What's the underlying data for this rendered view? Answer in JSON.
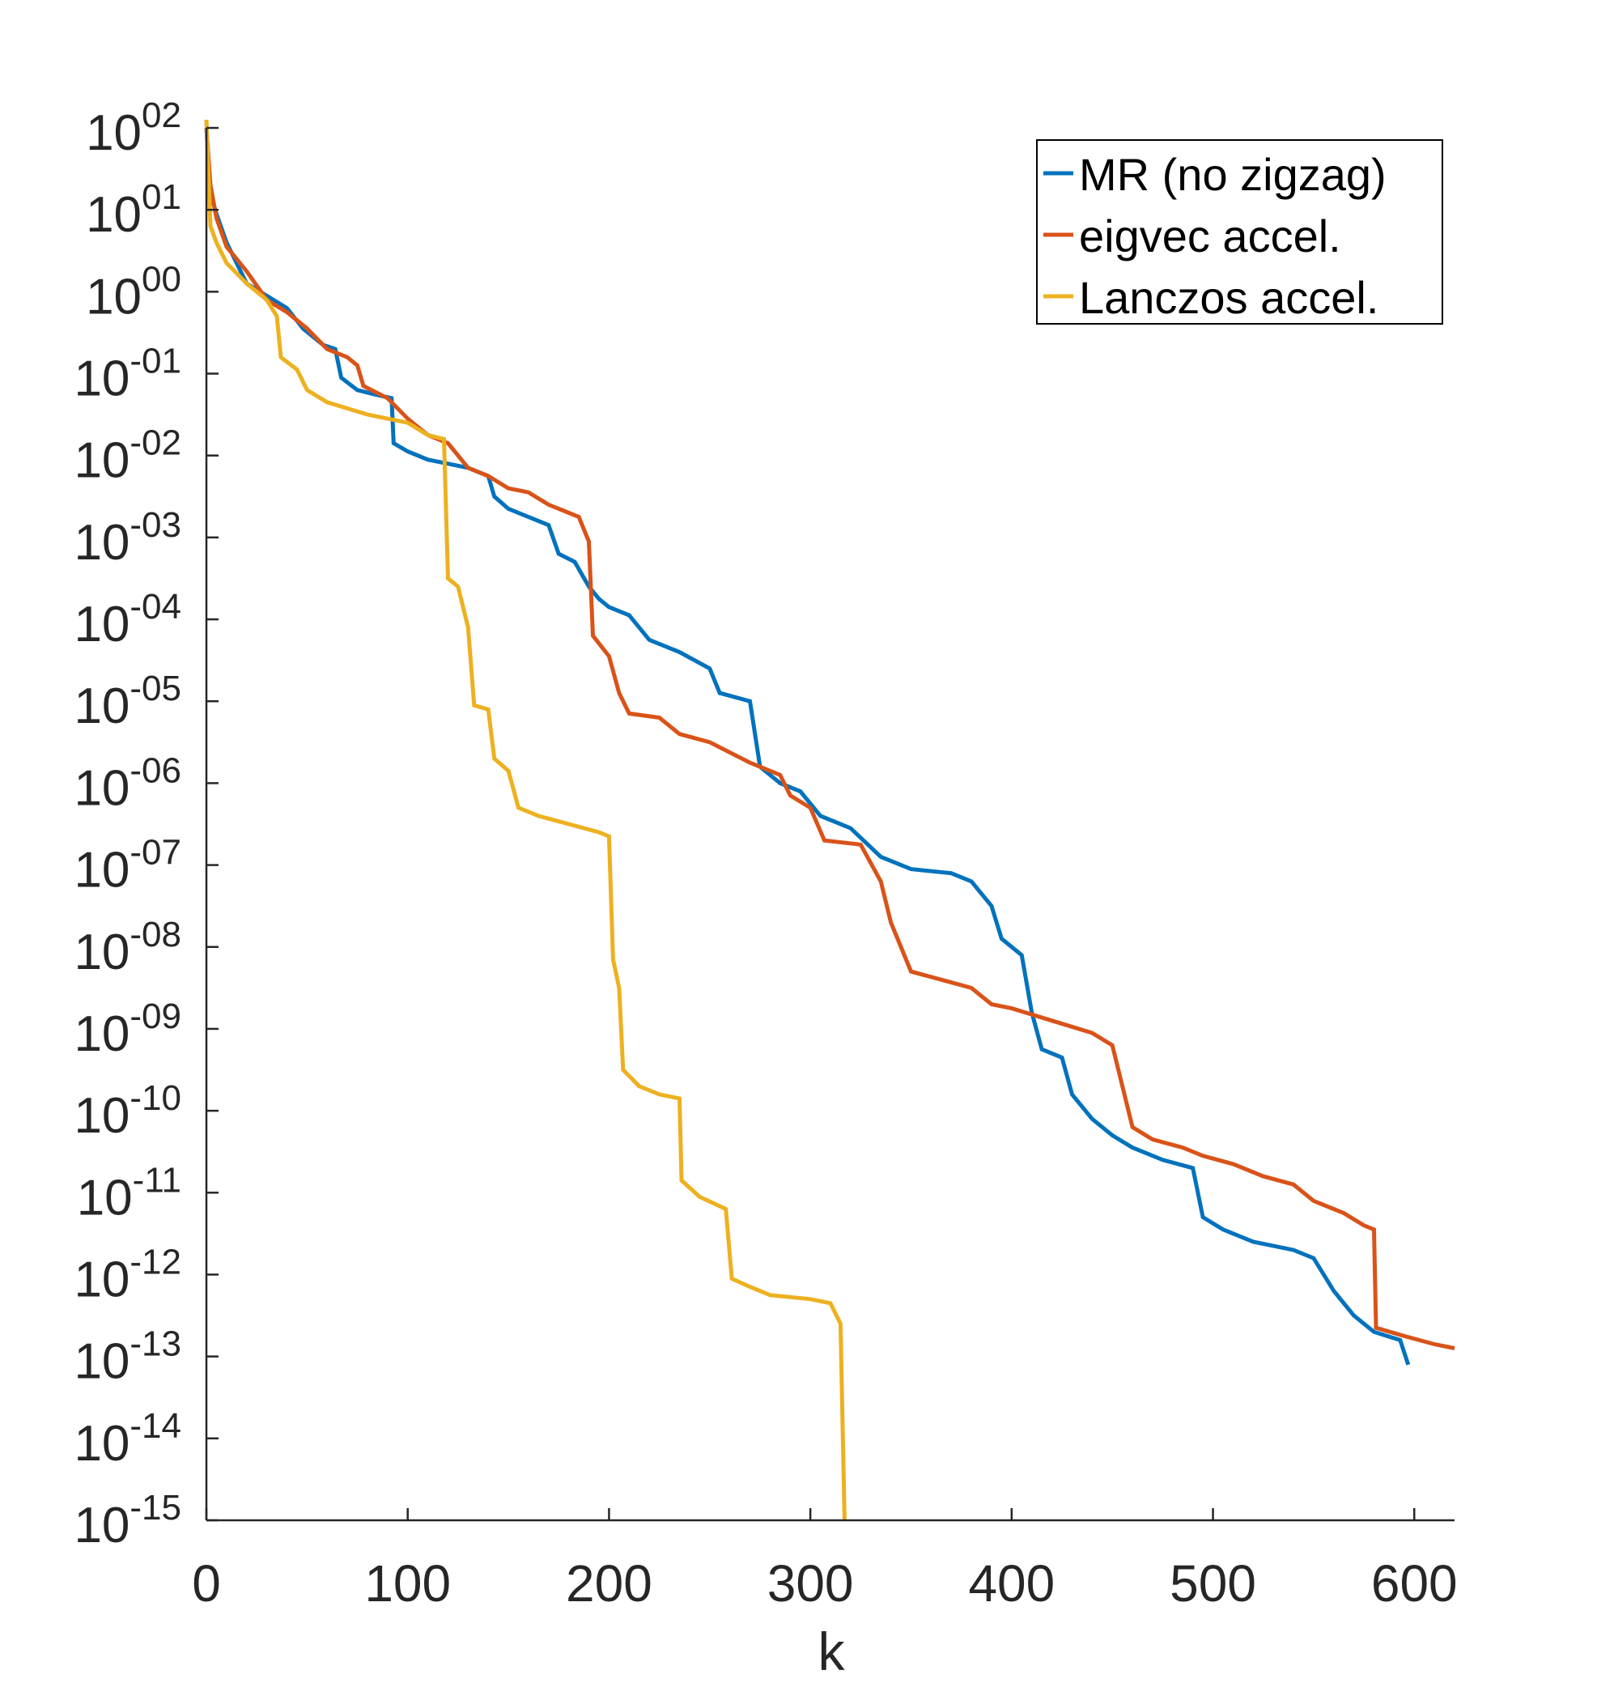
{
  "chart_data": {
    "type": "line",
    "title": "",
    "xlabel": "k",
    "ylabel": "",
    "xlim": [
      0,
      620
    ],
    "ylim_log10": [
      -15,
      2
    ],
    "yscale": "log",
    "x_ticks": [
      0,
      100,
      200,
      300,
      400,
      500,
      600
    ],
    "y_ticks": [
      {
        "exp": 2,
        "base": "10",
        "sup": "02"
      },
      {
        "exp": 1,
        "base": "10",
        "sup": "01"
      },
      {
        "exp": 0,
        "base": "10",
        "sup": "00"
      },
      {
        "exp": -1,
        "base": "10",
        "sup": "-01"
      },
      {
        "exp": -2,
        "base": "10",
        "sup": "-02"
      },
      {
        "exp": -3,
        "base": "10",
        "sup": "-03"
      },
      {
        "exp": -4,
        "base": "10",
        "sup": "-04"
      },
      {
        "exp": -5,
        "base": "10",
        "sup": "-05"
      },
      {
        "exp": -6,
        "base": "10",
        "sup": "-06"
      },
      {
        "exp": -7,
        "base": "10",
        "sup": "-07"
      },
      {
        "exp": -8,
        "base": "10",
        "sup": "-08"
      },
      {
        "exp": -9,
        "base": "10",
        "sup": "-09"
      },
      {
        "exp": -10,
        "base": "10",
        "sup": "-10"
      },
      {
        "exp": -11,
        "base": "10",
        "sup": "-11"
      },
      {
        "exp": -12,
        "base": "10",
        "sup": "-12"
      },
      {
        "exp": -13,
        "base": "10",
        "sup": "-13"
      },
      {
        "exp": -14,
        "base": "10",
        "sup": "-14"
      },
      {
        "exp": -15,
        "base": "10",
        "sup": "-15"
      }
    ],
    "legend_position": "top-right",
    "series": [
      {
        "name": "MR (no zigzag)",
        "color": "#0072BD",
        "points": [
          [
            0,
            2.0
          ],
          [
            2,
            1.2
          ],
          [
            5,
            0.95
          ],
          [
            10,
            0.6
          ],
          [
            20,
            0.1
          ],
          [
            30,
            -0.05
          ],
          [
            40,
            -0.2
          ],
          [
            48,
            -0.45
          ],
          [
            53,
            -0.55
          ],
          [
            58,
            -0.65
          ],
          [
            64,
            -0.7
          ],
          [
            67,
            -1.05
          ],
          [
            75,
            -1.2
          ],
          [
            83,
            -1.25
          ],
          [
            92,
            -1.3
          ],
          [
            93,
            -1.85
          ],
          [
            100,
            -1.95
          ],
          [
            110,
            -2.05
          ],
          [
            120,
            -2.1
          ],
          [
            130,
            -2.15
          ],
          [
            140,
            -2.25
          ],
          [
            143,
            -2.5
          ],
          [
            150,
            -2.65
          ],
          [
            160,
            -2.75
          ],
          [
            170,
            -2.85
          ],
          [
            175,
            -3.2
          ],
          [
            183,
            -3.3
          ],
          [
            190,
            -3.6
          ],
          [
            195,
            -3.75
          ],
          [
            200,
            -3.85
          ],
          [
            210,
            -3.95
          ],
          [
            220,
            -4.25
          ],
          [
            235,
            -4.4
          ],
          [
            250,
            -4.6
          ],
          [
            255,
            -4.9
          ],
          [
            270,
            -5.0
          ],
          [
            275,
            -5.8
          ],
          [
            285,
            -6.0
          ],
          [
            295,
            -6.1
          ],
          [
            305,
            -6.4
          ],
          [
            320,
            -6.55
          ],
          [
            335,
            -6.9
          ],
          [
            350,
            -7.05
          ],
          [
            370,
            -7.1
          ],
          [
            380,
            -7.2
          ],
          [
            390,
            -7.5
          ],
          [
            395,
            -7.9
          ],
          [
            405,
            -8.1
          ],
          [
            410,
            -8.8
          ],
          [
            415,
            -9.25
          ],
          [
            425,
            -9.35
          ],
          [
            430,
            -9.8
          ],
          [
            440,
            -10.1
          ],
          [
            450,
            -10.3
          ],
          [
            460,
            -10.45
          ],
          [
            475,
            -10.6
          ],
          [
            490,
            -10.7
          ],
          [
            495,
            -11.3
          ],
          [
            505,
            -11.45
          ],
          [
            520,
            -11.6
          ],
          [
            540,
            -11.7
          ],
          [
            550,
            -11.8
          ],
          [
            560,
            -12.2
          ],
          [
            570,
            -12.5
          ],
          [
            580,
            -12.7
          ],
          [
            593,
            -12.8
          ],
          [
            597,
            -13.1
          ]
        ]
      },
      {
        "name": "eigvec accel.",
        "color": "#D95319",
        "points": [
          [
            0,
            2.0
          ],
          [
            2,
            1.3
          ],
          [
            5,
            0.9
          ],
          [
            10,
            0.55
          ],
          [
            20,
            0.25
          ],
          [
            30,
            -0.1
          ],
          [
            40,
            -0.25
          ],
          [
            50,
            -0.45
          ],
          [
            60,
            -0.7
          ],
          [
            70,
            -0.8
          ],
          [
            75,
            -0.9
          ],
          [
            78,
            -1.15
          ],
          [
            90,
            -1.3
          ],
          [
            100,
            -1.55
          ],
          [
            110,
            -1.75
          ],
          [
            120,
            -1.85
          ],
          [
            130,
            -2.15
          ],
          [
            140,
            -2.25
          ],
          [
            150,
            -2.4
          ],
          [
            160,
            -2.45
          ],
          [
            170,
            -2.6
          ],
          [
            180,
            -2.7
          ],
          [
            185,
            -2.75
          ],
          [
            190,
            -3.05
          ],
          [
            192,
            -4.2
          ],
          [
            200,
            -4.45
          ],
          [
            205,
            -4.9
          ],
          [
            210,
            -5.15
          ],
          [
            225,
            -5.2
          ],
          [
            235,
            -5.4
          ],
          [
            250,
            -5.5
          ],
          [
            270,
            -5.75
          ],
          [
            285,
            -5.9
          ],
          [
            290,
            -6.15
          ],
          [
            300,
            -6.3
          ],
          [
            307,
            -6.7
          ],
          [
            325,
            -6.75
          ],
          [
            335,
            -7.2
          ],
          [
            340,
            -7.7
          ],
          [
            350,
            -8.3
          ],
          [
            365,
            -8.4
          ],
          [
            380,
            -8.5
          ],
          [
            390,
            -8.7
          ],
          [
            400,
            -8.75
          ],
          [
            420,
            -8.9
          ],
          [
            440,
            -9.05
          ],
          [
            450,
            -9.2
          ],
          [
            460,
            -10.2
          ],
          [
            470,
            -10.35
          ],
          [
            485,
            -10.45
          ],
          [
            495,
            -10.55
          ],
          [
            510,
            -10.65
          ],
          [
            525,
            -10.8
          ],
          [
            540,
            -10.9
          ],
          [
            550,
            -11.1
          ],
          [
            565,
            -11.25
          ],
          [
            575,
            -11.4
          ],
          [
            580,
            -11.45
          ],
          [
            581,
            -12.65
          ],
          [
            595,
            -12.75
          ],
          [
            610,
            -12.85
          ],
          [
            620,
            -12.9
          ]
        ]
      },
      {
        "name": "Lanczos accel.",
        "color": "#EDB120",
        "points": [
          [
            0,
            2.1
          ],
          [
            2,
            0.8
          ],
          [
            5,
            0.6
          ],
          [
            10,
            0.35
          ],
          [
            20,
            0.1
          ],
          [
            30,
            -0.1
          ],
          [
            35,
            -0.3
          ],
          [
            37,
            -0.8
          ],
          [
            45,
            -0.95
          ],
          [
            50,
            -1.2
          ],
          [
            60,
            -1.35
          ],
          [
            80,
            -1.5
          ],
          [
            100,
            -1.6
          ],
          [
            110,
            -1.75
          ],
          [
            118,
            -1.8
          ],
          [
            120,
            -3.5
          ],
          [
            125,
            -3.6
          ],
          [
            130,
            -4.1
          ],
          [
            133,
            -5.05
          ],
          [
            140,
            -5.1
          ],
          [
            143,
            -5.7
          ],
          [
            150,
            -5.85
          ],
          [
            155,
            -6.3
          ],
          [
            165,
            -6.4
          ],
          [
            180,
            -6.5
          ],
          [
            195,
            -6.6
          ],
          [
            200,
            -6.65
          ],
          [
            202,
            -8.15
          ],
          [
            205,
            -8.5
          ],
          [
            207,
            -9.5
          ],
          [
            215,
            -9.7
          ],
          [
            225,
            -9.8
          ],
          [
            235,
            -9.85
          ],
          [
            236,
            -10.85
          ],
          [
            245,
            -11.05
          ],
          [
            258,
            -11.2
          ],
          [
            261,
            -12.05
          ],
          [
            270,
            -12.15
          ],
          [
            280,
            -12.25
          ],
          [
            300,
            -12.3
          ],
          [
            310,
            -12.35
          ],
          [
            315,
            -12.6
          ],
          [
            317,
            -15.0
          ]
        ]
      }
    ]
  }
}
